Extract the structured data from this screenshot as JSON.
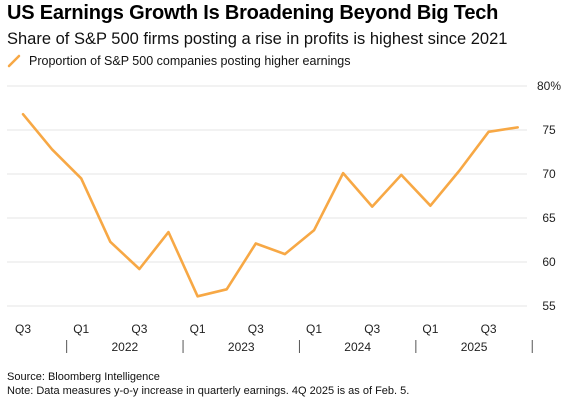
{
  "title": "US Earnings Growth Is Broadening Beyond Big Tech",
  "subtitle": "Share of S&P 500 firms posting a rise in profits is highest since 2021",
  "legend_label": "Proportion of S&P 500 companies posting higher earnings",
  "colors": {
    "series": "#f7a845",
    "grid": "#e6e6e6",
    "axis": "#555555"
  },
  "chart_data": {
    "type": "line",
    "series": [
      {
        "name": "Proportion of S&P 500 companies posting higher earnings",
        "x": [
          "3Q 2021",
          "4Q 2021",
          "1Q 2022",
          "2Q 2022",
          "3Q 2022",
          "4Q 2022",
          "1Q 2023",
          "2Q 2023",
          "3Q 2023",
          "4Q 2023",
          "1Q 2024",
          "2Q 2024",
          "3Q 2024",
          "4Q 2024",
          "1Q 2025",
          "2Q 2025",
          "3Q 2025",
          "4Q 2025"
        ],
        "values": [
          76.8,
          72.8,
          69.5,
          62.3,
          59.2,
          63.4,
          56.1,
          56.9,
          62.1,
          60.9,
          63.6,
          70.1,
          66.3,
          69.9,
          66.4,
          70.4,
          74.8,
          75.3
        ]
      }
    ],
    "ylim": [
      55,
      80
    ],
    "yticks": [
      "80%",
      "75",
      "70",
      "65",
      "60",
      "55"
    ],
    "quarter_ticks": [
      "Q3",
      "Q1",
      "Q3",
      "Q1",
      "Q3",
      "Q1",
      "Q3",
      "Q1",
      "Q3"
    ],
    "year_labels": [
      "2022",
      "2023",
      "2024",
      "2025"
    ],
    "grid": true,
    "legend": "top-left"
  },
  "footer": {
    "source": "Source: Bloomberg Intelligence",
    "note": "Note: Data measures y-o-y increase in quarterly earnings. 4Q 2025 is as of Feb. 5."
  }
}
